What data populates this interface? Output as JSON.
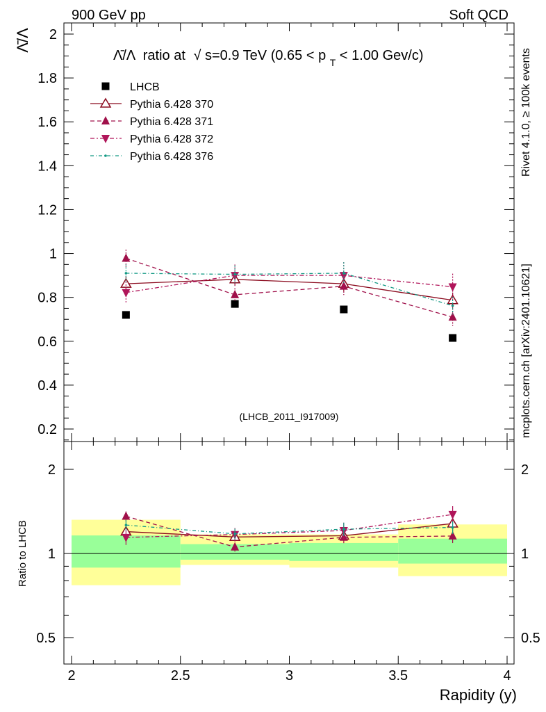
{
  "header": {
    "left": "900 GeV pp",
    "right": "Soft QCD"
  },
  "side_labels": {
    "rivet": "Rivet 4.1.0, ≥ 100k events",
    "mcplots": "mcplots.cern.ch [arXiv:2401.10621]"
  },
  "colors": {
    "data": "#000000",
    "p370": "#8b0a1e",
    "p371": "#a0104a",
    "p372": "#b0155a",
    "p376": "#149a85",
    "band_inner": "#99ff99",
    "band_outer": "#ffff99",
    "ref_label": "#a0a0a0",
    "side_label": "#8c8c8c"
  },
  "chart_data": {
    "type": "scatter",
    "title_parts": {
      "quantity": "Λ̄/Λ",
      "mid": "ratio at",
      "sqrt_sym": "√",
      "energy": "s=0.9 TeV (0.65 < p",
      "sub": "T",
      "tail": " < 1.00 Gev/c)"
    },
    "ylabel": "Λ̄/Λ",
    "ratio_ylabel": "Ratio to LHCB",
    "xlabel": "Rapidity (y)",
    "reference_label": "(LHCB_2011_I917009)",
    "xlim": [
      2.0,
      4.0
    ],
    "ylim": [
      0.15,
      2.05
    ],
    "ratio_ylim": [
      0.4,
      2.4
    ],
    "xticks": [
      2,
      2.5,
      3,
      3.5,
      4
    ],
    "xtick_labels": [
      "2",
      "2.5",
      "3",
      "3.5",
      "4"
    ],
    "yticks": [
      0.2,
      0.4,
      0.6,
      0.8,
      1.0,
      1.2,
      1.4,
      1.6,
      1.8,
      2.0
    ],
    "ytick_labels": [
      "0.2",
      "0.4",
      "0.6",
      "0.8",
      "1",
      "1.2",
      "1.4",
      "1.6",
      "1.8",
      "2"
    ],
    "ratio_yticks": [
      0.5,
      1,
      2
    ],
    "ratio_ytick_labels": [
      "0.5",
      "1",
      "2"
    ],
    "bins": [
      [
        2.0,
        2.5
      ],
      [
        2.5,
        3.0
      ],
      [
        3.0,
        3.5
      ],
      [
        3.5,
        4.0
      ]
    ],
    "x_centers": [
      2.25,
      2.75,
      3.25,
      3.75
    ],
    "band_inner": [
      [
        0.89,
        1.16
      ],
      [
        0.95,
        1.08
      ],
      [
        0.94,
        1.09
      ],
      [
        0.92,
        1.13
      ]
    ],
    "band_outer": [
      [
        0.77,
        1.32
      ],
      [
        0.91,
        1.17
      ],
      [
        0.89,
        1.17
      ],
      [
        0.83,
        1.27
      ]
    ],
    "series": [
      {
        "name": "LHCB",
        "marker": "square",
        "values": [
          0.72,
          0.77,
          0.745,
          0.615
        ],
        "errors": [
          0,
          0,
          0,
          0
        ]
      },
      {
        "name": "Pythia 6.428 370",
        "marker": "triangle-open",
        "values": [
          0.862,
          0.882,
          0.862,
          0.787
        ],
        "errors": [
          0.035,
          0.03,
          0.035,
          0.035
        ]
      },
      {
        "name": "Pythia 6.428 371",
        "marker": "triangle-up",
        "values": [
          0.978,
          0.812,
          0.851,
          0.71
        ],
        "errors": [
          0.04,
          0.03,
          0.04,
          0.04
        ]
      },
      {
        "name": "Pythia 6.428 372",
        "marker": "triangle-down",
        "values": [
          0.822,
          0.9,
          0.9,
          0.848
        ],
        "errors": [
          0.05,
          0.05,
          0.06,
          0.06
        ]
      },
      {
        "name": "Pythia 6.428 376",
        "marker": "dot",
        "values": [
          0.91,
          0.905,
          0.91,
          0.762
        ],
        "errors": [
          0.04,
          0.04,
          0.05,
          0.04
        ]
      }
    ]
  }
}
